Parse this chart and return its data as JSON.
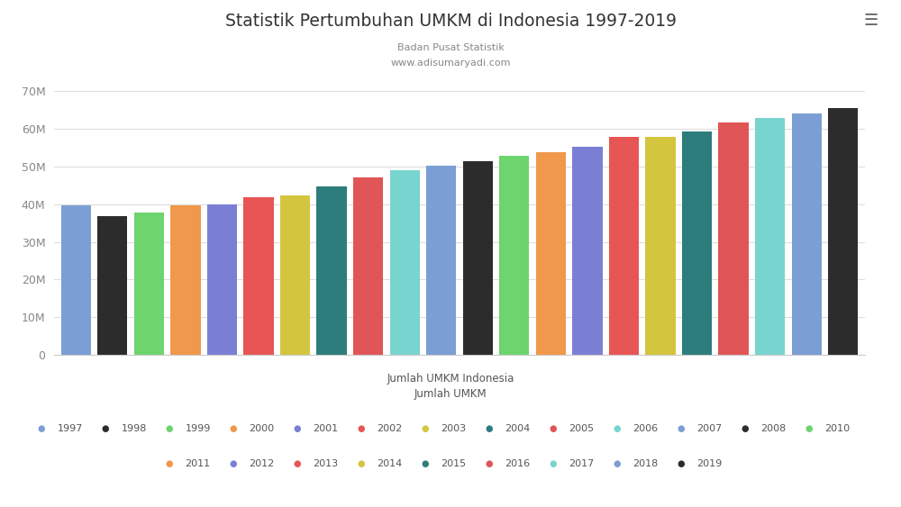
{
  "title": "Statistik Pertumbuhan UMKM di Indonesia 1997-2019",
  "subtitle1": "Badan Pusat Statistik",
  "subtitle2": "www.adisumaryadi.com",
  "xlabel1": "Jumlah UMKM Indonesia",
  "xlabel2": "Jumlah UMKM",
  "background_color": "#ffffff",
  "plot_bg_color": "#f8f8f8",
  "bars": [
    {
      "year": 1997,
      "value": 39704661,
      "color": "#7b9fd4"
    },
    {
      "year": 1998,
      "value": 36813578,
      "color": "#2c2c2c"
    },
    {
      "year": 1999,
      "value": 37839990,
      "color": "#6dd46e"
    },
    {
      "year": 2000,
      "value": 39704661,
      "color": "#f0984b"
    },
    {
      "year": 2001,
      "value": 40018000,
      "color": "#7b7fd4"
    },
    {
      "year": 2002,
      "value": 41807914,
      "color": "#e85555"
    },
    {
      "year": 2003,
      "value": 42326519,
      "color": "#d4c53e"
    },
    {
      "year": 2004,
      "value": 44684670,
      "color": "#2d7d7d"
    },
    {
      "year": 2005,
      "value": 47017062,
      "color": "#e05555"
    },
    {
      "year": 2006,
      "value": 49021589,
      "color": "#78d4cf"
    },
    {
      "year": 2007,
      "value": 50145800,
      "color": "#7b9fd4"
    },
    {
      "year": 2008,
      "value": 51409612,
      "color": "#2c2c2c"
    },
    {
      "year": 2010,
      "value": 52764603,
      "color": "#6dd46e"
    },
    {
      "year": 2011,
      "value": 53823732,
      "color": "#f0984b"
    },
    {
      "year": 2012,
      "value": 55206444,
      "color": "#7b7fd4"
    },
    {
      "year": 2013,
      "value": 57895721,
      "color": "#e85555"
    },
    {
      "year": 2014,
      "value": 57900000,
      "color": "#d4c53e"
    },
    {
      "year": 2015,
      "value": 59262772,
      "color": "#2d7d7d"
    },
    {
      "year": 2016,
      "value": 61651177,
      "color": "#e05555"
    },
    {
      "year": 2017,
      "value": 62922617,
      "color": "#78d4cf"
    },
    {
      "year": 2018,
      "value": 64194057,
      "color": "#7b9fd4"
    },
    {
      "year": 2019,
      "value": 65465497,
      "color": "#2c2c2c"
    }
  ],
  "ylim": [
    0,
    70000000
  ],
  "yticks": [
    0,
    10000000,
    20000000,
    30000000,
    40000000,
    50000000,
    60000000,
    70000000
  ],
  "ytick_labels": [
    "0",
    "10M",
    "20M",
    "30M",
    "40M",
    "50M",
    "60M",
    "70M"
  ],
  "legend_rows": [
    [
      {
        "year": "1997",
        "color": "#7b9fd4"
      },
      {
        "year": "1998",
        "color": "#2c2c2c"
      },
      {
        "year": "1999",
        "color": "#6dd46e"
      },
      {
        "year": "2000",
        "color": "#f0984b"
      },
      {
        "year": "2001",
        "color": "#7b7fd4"
      },
      {
        "year": "2002",
        "color": "#e85555"
      },
      {
        "year": "2003",
        "color": "#d4c53e"
      },
      {
        "year": "2004",
        "color": "#2d7d7d"
      },
      {
        "year": "2005",
        "color": "#e05555"
      },
      {
        "year": "2006",
        "color": "#78d4cf"
      },
      {
        "year": "2007",
        "color": "#7b9fd4"
      },
      {
        "year": "2008",
        "color": "#2c2c2c"
      },
      {
        "year": "2010",
        "color": "#6dd46e"
      }
    ],
    [
      {
        "year": "2011",
        "color": "#f0984b"
      },
      {
        "year": "2012",
        "color": "#7b7fd4"
      },
      {
        "year": "2013",
        "color": "#e85555"
      },
      {
        "year": "2014",
        "color": "#d4c53e"
      },
      {
        "year": "2015",
        "color": "#2d7d7d"
      },
      {
        "year": "2016",
        "color": "#e05555"
      },
      {
        "year": "2017",
        "color": "#78d4cf"
      },
      {
        "year": "2018",
        "color": "#7b9fd4"
      },
      {
        "year": "2019",
        "color": "#2c2c2c"
      }
    ]
  ]
}
